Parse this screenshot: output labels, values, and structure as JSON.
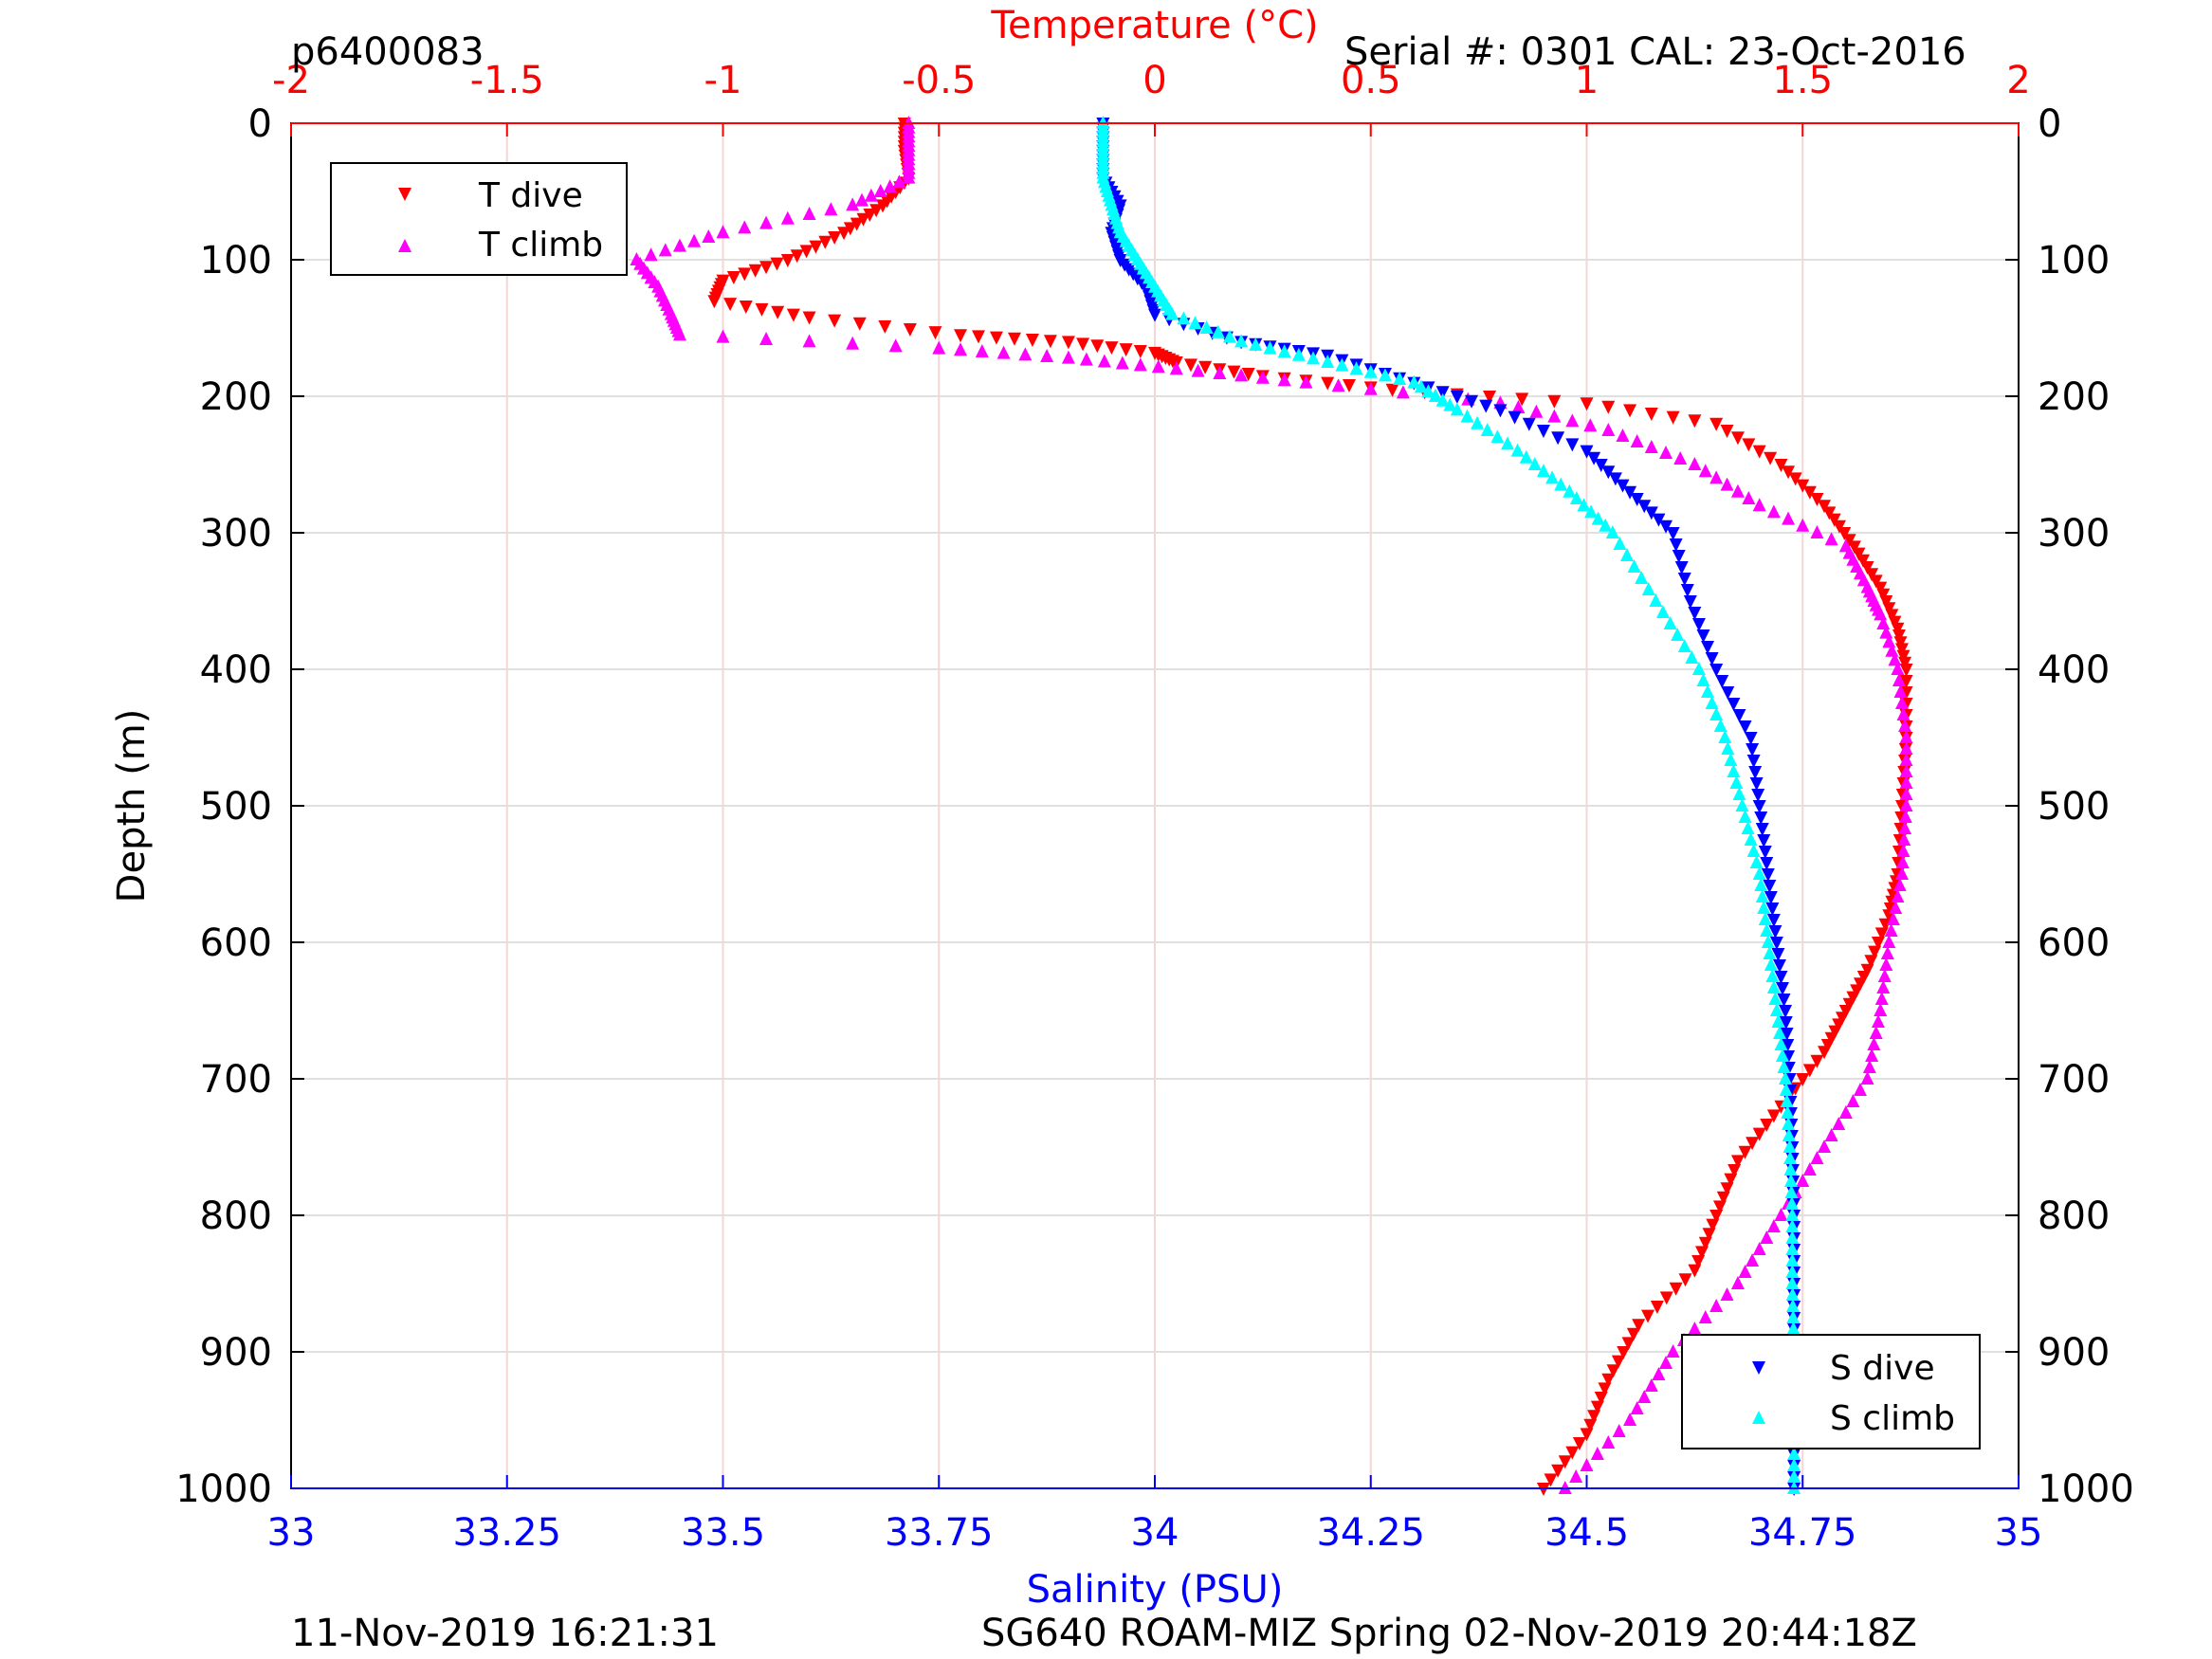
{
  "header": {
    "plot_id": "p6400083",
    "serial_cal": "Serial #: 0301  CAL: 23-Oct-2016"
  },
  "footer": {
    "left": "11-Nov-2019 16:21:31",
    "right": "SG640 ROAM-MIZ Spring 02-Nov-2019 20:44:18Z"
  },
  "colors": {
    "temperature_axis": "#ff0000",
    "salinity_axis": "#0000ff",
    "t_dive": "#ff0000",
    "t_climb": "#ff00ff",
    "s_dive": "#0000ff",
    "s_climb": "#00ffff"
  },
  "chart_data": {
    "type": "scatter",
    "grid": true,
    "y": {
      "label": "Depth (m)",
      "range": [
        0,
        1000
      ],
      "reversed": true,
      "ticks": [
        "0",
        "100",
        "200",
        "300",
        "400",
        "500",
        "600",
        "700",
        "800",
        "900",
        "1000"
      ]
    },
    "x_top": {
      "label": "Temperature (°C)",
      "range": [
        -2,
        2
      ],
      "ticks": [
        "-2",
        "-1.5",
        "-1",
        "-0.5",
        "0",
        "0.5",
        "1",
        "1.5",
        "2"
      ]
    },
    "x_bottom": {
      "label": "Salinity (PSU)",
      "range": [
        33,
        35
      ],
      "ticks": [
        "33",
        "33.25",
        "33.5",
        "33.75",
        "34",
        "34.25",
        "34.5",
        "34.75",
        "35"
      ]
    },
    "legends": [
      {
        "placement": "top-left",
        "entries": [
          "T dive",
          "T climb"
        ]
      },
      {
        "placement": "bottom-right",
        "entries": [
          "S dive",
          "S climb"
        ]
      }
    ],
    "series": [
      {
        "name": "T dive",
        "axis": "temperature",
        "marker": "triangle-down",
        "points": [
          [
            -0.58,
            0
          ],
          [
            -0.58,
            20
          ],
          [
            -0.57,
            40
          ],
          [
            -0.63,
            60
          ],
          [
            -0.72,
            80
          ],
          [
            -0.85,
            100
          ],
          [
            -1.0,
            115
          ],
          [
            -1.02,
            130
          ],
          [
            -0.8,
            142
          ],
          [
            -0.45,
            155
          ],
          [
            -0.2,
            160
          ],
          [
            0.0,
            168
          ],
          [
            0.05,
            175
          ],
          [
            0.25,
            185
          ],
          [
            0.55,
            195
          ],
          [
            1.0,
            205
          ],
          [
            1.3,
            220
          ],
          [
            1.45,
            250
          ],
          [
            1.55,
            280
          ],
          [
            1.62,
            310
          ],
          [
            1.68,
            340
          ],
          [
            1.72,
            370
          ],
          [
            1.74,
            400
          ],
          [
            1.74,
            450
          ],
          [
            1.73,
            500
          ],
          [
            1.72,
            550
          ],
          [
            1.7,
            580
          ],
          [
            1.65,
            620
          ],
          [
            1.6,
            650
          ],
          [
            1.55,
            680
          ],
          [
            1.45,
            720
          ],
          [
            1.35,
            760
          ],
          [
            1.3,
            800
          ],
          [
            1.25,
            840
          ],
          [
            1.12,
            880
          ],
          [
            1.05,
            920
          ],
          [
            1.0,
            960
          ],
          [
            0.9,
            1000
          ]
        ]
      },
      {
        "name": "T climb",
        "axis": "temperature",
        "marker": "triangle-up",
        "points": [
          [
            -0.57,
            0
          ],
          [
            -0.57,
            20
          ],
          [
            -0.57,
            40
          ],
          [
            -0.7,
            60
          ],
          [
            -1.0,
            80
          ],
          [
            -1.2,
            100
          ],
          [
            -1.15,
            120
          ],
          [
            -1.12,
            140
          ],
          [
            -1.1,
            155
          ],
          [
            -0.5,
            165
          ],
          [
            -0.2,
            172
          ],
          [
            0.05,
            180
          ],
          [
            0.35,
            190
          ],
          [
            0.8,
            205
          ],
          [
            1.05,
            225
          ],
          [
            1.25,
            250
          ],
          [
            1.4,
            280
          ],
          [
            1.6,
            310
          ],
          [
            1.65,
            340
          ],
          [
            1.68,
            360
          ],
          [
            1.72,
            400
          ],
          [
            1.74,
            450
          ],
          [
            1.74,
            500
          ],
          [
            1.73,
            550
          ],
          [
            1.7,
            600
          ],
          [
            1.68,
            650
          ],
          [
            1.65,
            700
          ],
          [
            1.55,
            750
          ],
          [
            1.45,
            800
          ],
          [
            1.35,
            850
          ],
          [
            1.2,
            900
          ],
          [
            1.1,
            950
          ],
          [
            0.95,
            1000
          ]
        ]
      },
      {
        "name": "S dive",
        "axis": "salinity",
        "marker": "triangle-down",
        "points": [
          [
            33.94,
            0
          ],
          [
            33.94,
            20
          ],
          [
            33.94,
            40
          ],
          [
            33.96,
            60
          ],
          [
            33.95,
            80
          ],
          [
            33.96,
            100
          ],
          [
            33.99,
            120
          ],
          [
            34.0,
            140
          ],
          [
            34.1,
            160
          ],
          [
            34.2,
            170
          ],
          [
            34.3,
            190
          ],
          [
            34.4,
            210
          ],
          [
            34.5,
            240
          ],
          [
            34.55,
            270
          ],
          [
            34.6,
            300
          ],
          [
            34.62,
            350
          ],
          [
            34.65,
            400
          ],
          [
            34.69,
            450
          ],
          [
            34.7,
            500
          ],
          [
            34.71,
            550
          ],
          [
            34.72,
            600
          ],
          [
            34.73,
            650
          ],
          [
            34.735,
            700
          ],
          [
            34.738,
            750
          ],
          [
            34.74,
            800
          ],
          [
            34.74,
            850
          ],
          [
            34.74,
            900
          ],
          [
            34.74,
            950
          ],
          [
            34.74,
            1000
          ]
        ]
      },
      {
        "name": "S climb",
        "axis": "salinity",
        "marker": "triangle-up",
        "points": [
          [
            33.94,
            0
          ],
          [
            33.94,
            20
          ],
          [
            33.94,
            40
          ],
          [
            33.95,
            60
          ],
          [
            33.96,
            80
          ],
          [
            33.98,
            100
          ],
          [
            34.0,
            120
          ],
          [
            34.02,
            140
          ],
          [
            34.1,
            160
          ],
          [
            34.2,
            175
          ],
          [
            34.3,
            190
          ],
          [
            34.35,
            210
          ],
          [
            34.42,
            240
          ],
          [
            34.48,
            270
          ],
          [
            34.53,
            300
          ],
          [
            34.58,
            350
          ],
          [
            34.63,
            400
          ],
          [
            34.66,
            450
          ],
          [
            34.68,
            500
          ],
          [
            34.7,
            550
          ],
          [
            34.71,
            600
          ],
          [
            34.72,
            650
          ],
          [
            34.73,
            700
          ],
          [
            34.735,
            750
          ],
          [
            34.738,
            800
          ],
          [
            34.738,
            850
          ],
          [
            34.74,
            900
          ],
          [
            34.74,
            950
          ],
          [
            34.74,
            1000
          ]
        ]
      }
    ]
  }
}
